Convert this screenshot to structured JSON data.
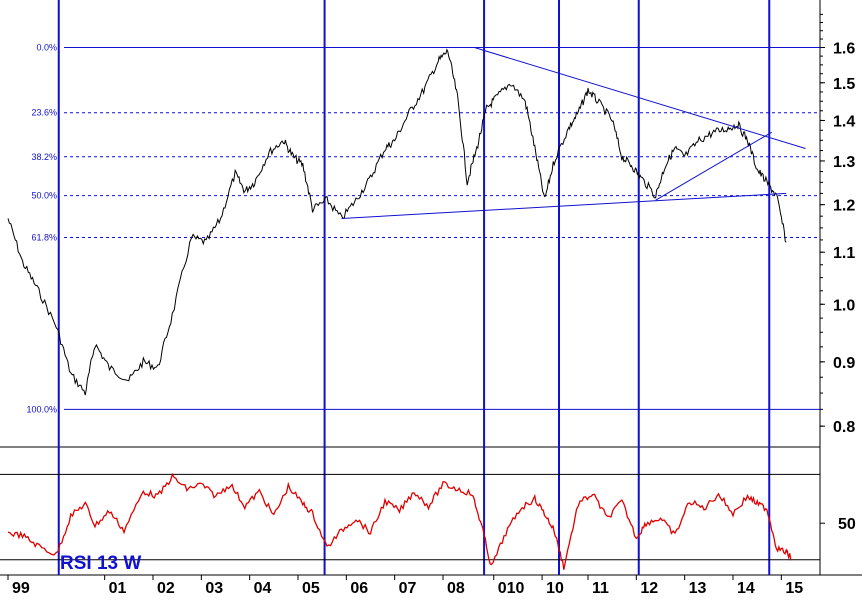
{
  "chart_data": [
    {
      "type": "line",
      "title": "",
      "scale": "log",
      "ylim": [
        0.78,
        1.72
      ],
      "y_ticks": [
        "1.6",
        "1.5",
        "1.4",
        "1.3",
        "1.2",
        "1.1",
        "1.0",
        "0.9",
        "0.8"
      ],
      "x_ticks": [
        "99",
        "01",
        "02",
        "03",
        "04",
        "05",
        "06",
        "07",
        "08",
        "010",
        "10",
        "11",
        "12",
        "13",
        "14",
        "15"
      ],
      "fib_levels": [
        {
          "label": "0.0%",
          "value": 1.6
        },
        {
          "label": "23.6%",
          "value": 1.42
        },
        {
          "label": "38.2%",
          "value": 1.31
        },
        {
          "label": "50.0%",
          "value": 1.22
        },
        {
          "label": "61.8%",
          "value": 1.13
        },
        {
          "label": "100.0%",
          "value": 0.825
        }
      ],
      "series": [
        {
          "x": [
            1999.0,
            1999.3,
            1999.6,
            2000.0,
            2000.3,
            2000.6,
            2000.8,
            2001.1,
            2001.5,
            2001.8,
            2002.1,
            2002.4,
            2002.8,
            2003.1,
            2003.4,
            2003.7,
            2003.9,
            2004.1,
            2004.4,
            2004.7,
            2004.9,
            2005.1,
            2005.3,
            2005.6,
            2005.9,
            2006.2,
            2006.5,
            2006.8,
            2007.0,
            2007.3,
            2007.6,
            2007.9,
            2008.1,
            2008.3,
            2008.5,
            2008.7,
            2008.9,
            2009.1,
            2009.4,
            2009.7,
            2009.9,
            2010.1,
            2010.3,
            2010.6,
            2010.8,
            2011.0,
            2011.2,
            2011.5,
            2011.7,
            2011.9,
            2012.1,
            2012.4,
            2012.6,
            2012.8,
            2013.0,
            2013.3,
            2013.6,
            2013.9,
            2014.1,
            2014.3,
            2014.5,
            2014.7,
            2014.9,
            2015.1
          ],
          "y": [
            1.17,
            1.08,
            1.03,
            0.96,
            0.88,
            0.85,
            0.93,
            0.89,
            0.87,
            0.9,
            0.89,
            0.98,
            1.13,
            1.12,
            1.17,
            1.27,
            1.23,
            1.25,
            1.32,
            1.35,
            1.31,
            1.29,
            1.19,
            1.21,
            1.17,
            1.21,
            1.26,
            1.33,
            1.35,
            1.42,
            1.48,
            1.56,
            1.59,
            1.46,
            1.25,
            1.33,
            1.43,
            1.46,
            1.5,
            1.45,
            1.33,
            1.21,
            1.3,
            1.38,
            1.42,
            1.48,
            1.45,
            1.4,
            1.31,
            1.29,
            1.26,
            1.22,
            1.29,
            1.33,
            1.31,
            1.35,
            1.37,
            1.38,
            1.39,
            1.35,
            1.28,
            1.25,
            1.22,
            1.12
          ]
        }
      ],
      "annotations": [
        {
          "type": "line",
          "x": [
            2008.65,
            2015.5
          ],
          "y": [
            1.6,
            1.33
          ]
        },
        {
          "type": "line",
          "x": [
            2005.9,
            2015.1
          ],
          "y": [
            1.17,
            1.225
          ]
        },
        {
          "type": "line",
          "x": [
            2012.4,
            2014.8
          ],
          "y": [
            1.21,
            1.37
          ]
        }
      ],
      "vertical_lines": [
        2000.05,
        2005.55,
        2008.85,
        2010.4,
        2012.05,
        2014.75
      ]
    },
    {
      "type": "line",
      "title": "RSI 13 W",
      "ylim": [
        30,
        80
      ],
      "y_ticks": [
        "50"
      ],
      "levels": [
        35,
        70
      ],
      "series": [
        {
          "name": "RSI 13 W",
          "x": [
            1999.0,
            1999.3,
            1999.6,
            2000.0,
            2000.3,
            2000.6,
            2000.8,
            2001.1,
            2001.4,
            2001.8,
            2002.1,
            2002.4,
            2002.7,
            2003.0,
            2003.3,
            2003.6,
            2003.9,
            2004.2,
            2004.5,
            2004.8,
            2005.1,
            2005.3,
            2005.6,
            2005.9,
            2006.2,
            2006.5,
            2006.8,
            2007.1,
            2007.4,
            2007.7,
            2008.0,
            2008.3,
            2008.6,
            2008.8,
            2009.0,
            2009.3,
            2009.6,
            2009.9,
            2010.1,
            2010.3,
            2010.5,
            2010.8,
            2011.1,
            2011.4,
            2011.7,
            2012.0,
            2012.2,
            2012.5,
            2012.8,
            2013.1,
            2013.4,
            2013.7,
            2014.0,
            2014.3,
            2014.5,
            2014.7,
            2014.9,
            2015.1,
            2015.2
          ],
          "y": [
            46,
            45,
            41,
            37,
            53,
            58,
            49,
            55,
            47,
            63,
            61,
            69,
            64,
            66,
            61,
            66,
            57,
            63,
            53,
            65,
            58,
            54,
            40,
            47,
            52,
            46,
            59,
            55,
            63,
            57,
            66,
            64,
            62,
            49,
            32,
            46,
            56,
            60,
            54,
            47,
            32,
            58,
            62,
            52,
            59,
            44,
            50,
            52,
            45,
            59,
            56,
            62,
            54,
            61,
            58,
            56,
            40,
            38,
            36
          ]
        }
      ]
    }
  ]
}
